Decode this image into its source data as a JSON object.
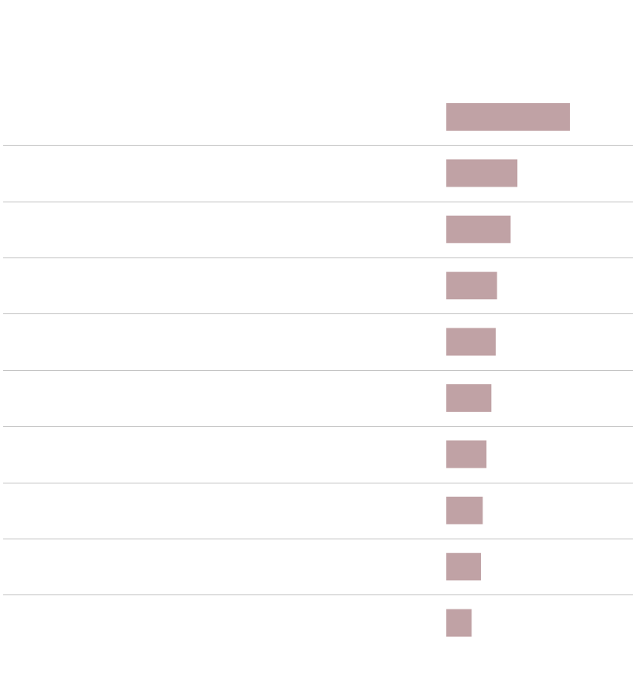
{
  "colors": {
    "bar": "#c0a2a5",
    "divider": "#c4c4c4",
    "background": "#ffffff"
  },
  "chart_data": {
    "type": "bar",
    "orientation": "horizontal",
    "value_domain": [
      0,
      100
    ],
    "grid": false,
    "legend": "none",
    "rows": [
      {
        "value": 100
      },
      {
        "value": 57.5
      },
      {
        "value": 52
      },
      {
        "value": 41
      },
      {
        "value": 40
      },
      {
        "value": 36.5
      },
      {
        "value": 32.5
      },
      {
        "value": 29.5
      },
      {
        "value": 28
      },
      {
        "value": 20.5
      }
    ]
  }
}
